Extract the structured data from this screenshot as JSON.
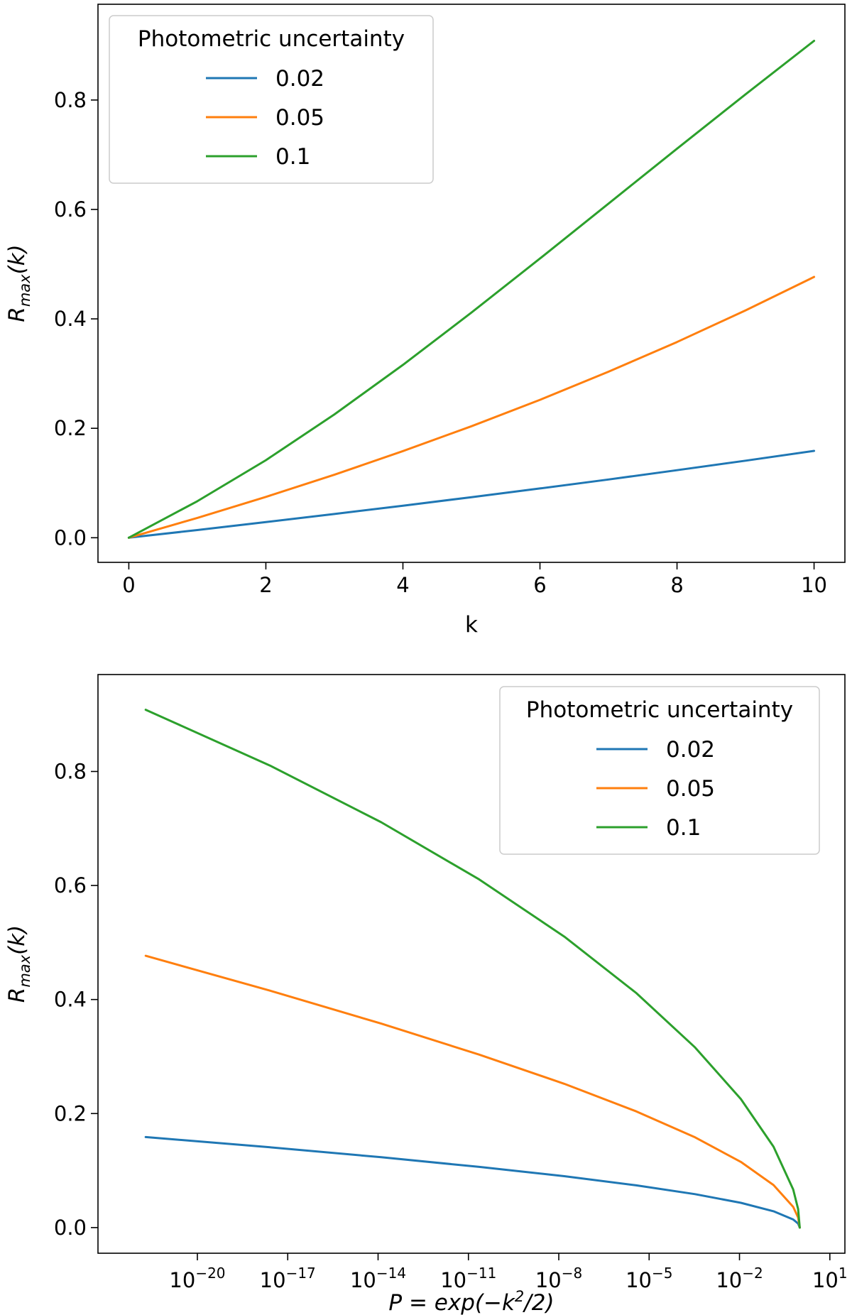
{
  "chart_data": [
    {
      "type": "line",
      "title": "",
      "xlabel": "k",
      "ylabel": "R_max(k)",
      "ylabel_main": "R",
      "ylabel_sub": "max",
      "ylabel_arg": "(k)",
      "xscale": "linear",
      "xlim": [
        -0.45,
        10.45
      ],
      "ylim": [
        -0.045,
        0.975
      ],
      "xticks": [
        0,
        2,
        4,
        6,
        8,
        10
      ],
      "xtick_labels": [
        "0",
        "2",
        "4",
        "6",
        "8",
        "10"
      ],
      "yticks": [
        0.0,
        0.2,
        0.4,
        0.6,
        0.8
      ],
      "ytick_labels": [
        "0.0",
        "0.2",
        "0.4",
        "0.6",
        "0.8"
      ],
      "grid": false,
      "legend": {
        "title": "Photometric uncertainty",
        "placement": "upper-left"
      },
      "series": [
        {
          "name": "0.02",
          "color": "#1f77b4",
          "x": [
            0,
            1,
            2,
            3,
            4,
            5,
            6,
            7,
            8,
            9,
            10
          ],
          "y": [
            0.0,
            0.0141,
            0.0286,
            0.0434,
            0.0586,
            0.0741,
            0.0901,
            0.1065,
            0.1234,
            0.1408,
            0.1587
          ]
        },
        {
          "name": "0.05",
          "color": "#ff7f0e",
          "x": [
            0,
            1,
            2,
            3,
            4,
            5,
            6,
            7,
            8,
            9,
            10
          ],
          "y": [
            0.0,
            0.0363,
            0.0746,
            0.1152,
            0.1583,
            0.2038,
            0.2521,
            0.3034,
            0.3577,
            0.4155,
            0.4767
          ]
        },
        {
          "name": "0.1",
          "color": "#2ca02c",
          "x": [
            0,
            1,
            2,
            3,
            4,
            5,
            6,
            7,
            8,
            9,
            10
          ],
          "y": [
            0.0,
            0.0667,
            0.1418,
            0.2254,
            0.3159,
            0.4115,
            0.5103,
            0.6106,
            0.711,
            0.8104,
            0.9082
          ]
        }
      ]
    },
    {
      "type": "line",
      "title": "",
      "xlabel": "P = exp(−k²/2)",
      "xlabel_pre": "P = exp(−k",
      "xlabel_sup": "2",
      "xlabel_post": "/2)",
      "ylabel": "R_max(k)",
      "ylabel_main": "R",
      "ylabel_sub": "max",
      "ylabel_arg": "(k)",
      "xscale": "log",
      "xlim_log10": [
        -23.3,
        1.5
      ],
      "ylim": [
        -0.045,
        0.97
      ],
      "xticks_log10": [
        -20,
        -17,
        -14,
        -11,
        -8,
        -5,
        -2,
        1
      ],
      "xtick_base": "10",
      "xtick_exponents": [
        "−20",
        "−17",
        "−14",
        "−11",
        "−8",
        "−5",
        "−2",
        "1"
      ],
      "yticks": [
        0.0,
        0.2,
        0.4,
        0.6,
        0.8
      ],
      "ytick_labels": [
        "0.0",
        "0.2",
        "0.4",
        "0.6",
        "0.8"
      ],
      "grid": false,
      "legend": {
        "title": "Photometric uncertainty",
        "placement": "upper-right"
      },
      "series": [
        {
          "name": "0.02",
          "color": "#1f77b4",
          "k": [
            0,
            0.5,
            1,
            2,
            3,
            4,
            5,
            6,
            7,
            8,
            9,
            10
          ],
          "y": [
            0.0,
            0.007,
            0.0141,
            0.0286,
            0.0434,
            0.0586,
            0.0741,
            0.0901,
            0.1065,
            0.1234,
            0.1408,
            0.1587
          ]
        },
        {
          "name": "0.05",
          "color": "#ff7f0e",
          "k": [
            0,
            0.5,
            1,
            2,
            3,
            4,
            5,
            6,
            7,
            8,
            9,
            10
          ],
          "y": [
            0.0,
            0.0178,
            0.0363,
            0.0746,
            0.1152,
            0.1583,
            0.2038,
            0.2521,
            0.3034,
            0.3577,
            0.4155,
            0.4767
          ]
        },
        {
          "name": "0.1",
          "color": "#2ca02c",
          "k": [
            0,
            0.5,
            1,
            2,
            3,
            4,
            5,
            6,
            7,
            8,
            9,
            10
          ],
          "y": [
            0.0,
            0.0325,
            0.0667,
            0.1418,
            0.2254,
            0.3159,
            0.4115,
            0.5103,
            0.6106,
            0.711,
            0.8104,
            0.9082
          ]
        }
      ]
    }
  ]
}
